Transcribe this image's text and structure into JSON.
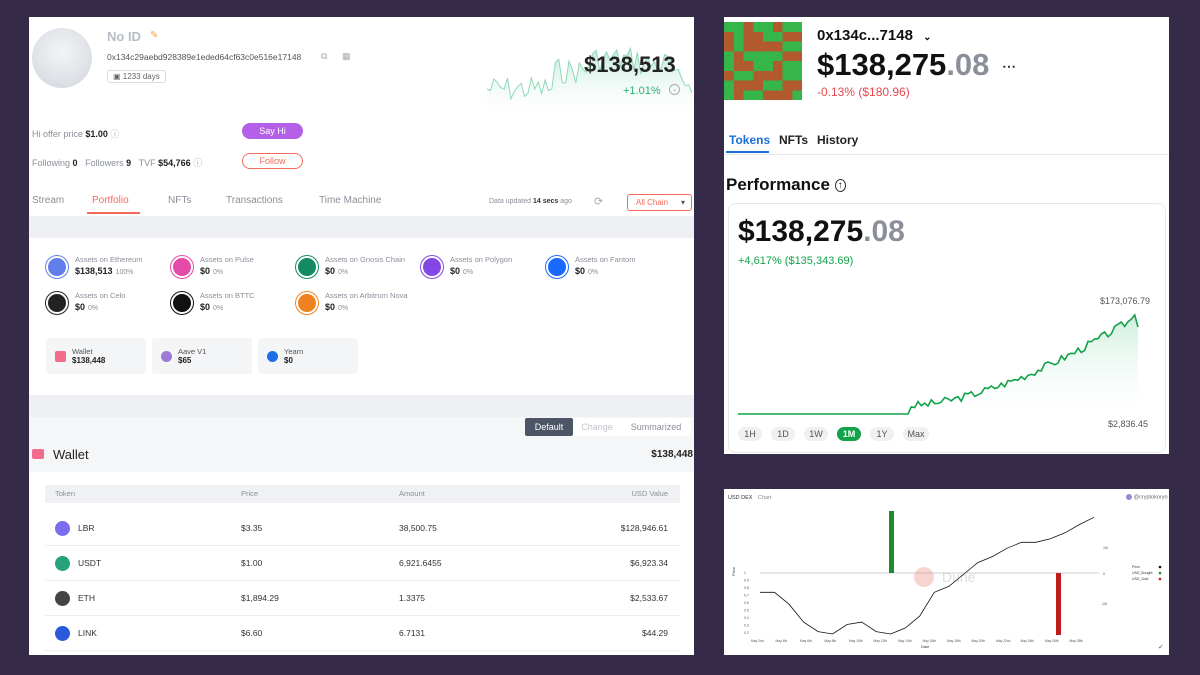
{
  "profile": {
    "name": "No ID",
    "address": "0x134c29aebd928389e1eded64cf63c0e516e17148",
    "days": "1233 days",
    "net_worth": "$138,513",
    "change": "+1.01%",
    "hi_offer_label": "Hi offer price",
    "hi_offer_value": "$1.00",
    "say_hi": "Say Hi",
    "following_label": "Following",
    "following_value": "0",
    "followers_label": "Followers",
    "followers_value": "9",
    "tvf_label": "TVF",
    "tvf_value": "$54,766",
    "follow": "Follow"
  },
  "tabs": [
    "Stream",
    "Portfolio",
    "NFTs",
    "Transactions",
    "Time Machine"
  ],
  "data_updated_prefix": "Data updated",
  "data_updated_value": "14 secs",
  "data_updated_suffix": "ago",
  "chain_select": "All Chain",
  "assets": [
    {
      "label": "Assets on Ethereum",
      "value": "$138,513",
      "pct": "100%",
      "color": "#627eea"
    },
    {
      "label": "Assets on Pulse",
      "value": "$0",
      "pct": "0%",
      "color": "#e44aa8"
    },
    {
      "label": "Assets on Gnosis Chain",
      "value": "$0",
      "pct": "0%",
      "color": "#138a64"
    },
    {
      "label": "Assets on Polygon",
      "value": "$0",
      "pct": "0%",
      "color": "#8247e5"
    },
    {
      "label": "Assets on Fantom",
      "value": "$0",
      "pct": "0%",
      "color": "#1969ff"
    },
    {
      "label": "Assets on Celo",
      "value": "$0",
      "pct": "0%",
      "color": "#222222"
    },
    {
      "label": "Assets on BTTC",
      "value": "$0",
      "pct": "0%",
      "color": "#111111"
    },
    {
      "label": "Assets on Arbitrum Nova",
      "value": "$0",
      "pct": "0%",
      "color": "#ef8220"
    }
  ],
  "protocols": [
    {
      "name": "Wallet",
      "value": "$138,448",
      "color": "#f26b8a"
    },
    {
      "name": "Aave V1",
      "value": "$65",
      "color": "#9a7ad6"
    },
    {
      "name": "Yearn",
      "value": "$0",
      "color": "#1e6fe5"
    }
  ],
  "view_modes": [
    "Default",
    "Change",
    "Summarized"
  ],
  "wallet": {
    "title": "Wallet",
    "total": "$138,448",
    "columns": [
      "Token",
      "Price",
      "Amount",
      "USD Value"
    ],
    "rows": [
      {
        "token": "LBR",
        "price": "$3.35",
        "amount": "38,500.75",
        "usd": "$128,946.61",
        "color": "#7c6cf0"
      },
      {
        "token": "USDT",
        "price": "$1.00",
        "amount": "6,921.6455",
        "usd": "$6,923.34",
        "color": "#26a17b"
      },
      {
        "token": "ETH",
        "price": "$1,894.29",
        "amount": "1.3375",
        "usd": "$2,533.67",
        "color": "#444444"
      },
      {
        "token": "LINK",
        "price": "$6.60",
        "amount": "6.7131",
        "usd": "$44.29",
        "color": "#2a5ada"
      }
    ]
  },
  "p2": {
    "address": "0x134c...7148",
    "balance_main": "$138,275",
    "balance_cents": ".08",
    "change": "-0.13% ($180.96)",
    "tabs": [
      "Tokens",
      "NFTs",
      "History"
    ],
    "performance_title": "Performance",
    "perf_main": "$138,275",
    "perf_cents": ".08",
    "perf_change": "+4,617% ($135,343.69)",
    "high": "$173,076.79",
    "low": "$2,836.45",
    "timeframes": [
      "1H",
      "1D",
      "1W",
      "1M",
      "1Y",
      "Max"
    ],
    "green": "#12a34a",
    "red": "#e5484d"
  },
  "p3": {
    "title": "USD DEX",
    "subtitle": "Chart",
    "handle": "@cryptokoryo",
    "watermark": "Dune",
    "xlabel": "Date",
    "ylabel": "Price",
    "y_ticks": [
      "1",
      "0.9",
      "0.8",
      "0.7",
      "0.6",
      "0.5",
      "0.4",
      "0.3",
      "0.2"
    ],
    "x_ticks": [
      "May 2nd",
      "May 4th",
      "May 6th",
      "May 8th",
      "May 10th",
      "May 12th",
      "May 14th",
      "May 16th",
      "May 18th",
      "May 20th",
      "May 22nd",
      "May 24th",
      "May 26th",
      "May 28th"
    ],
    "legend": [
      "Price",
      "USD_Bought",
      "USD_Sold"
    ]
  }
}
